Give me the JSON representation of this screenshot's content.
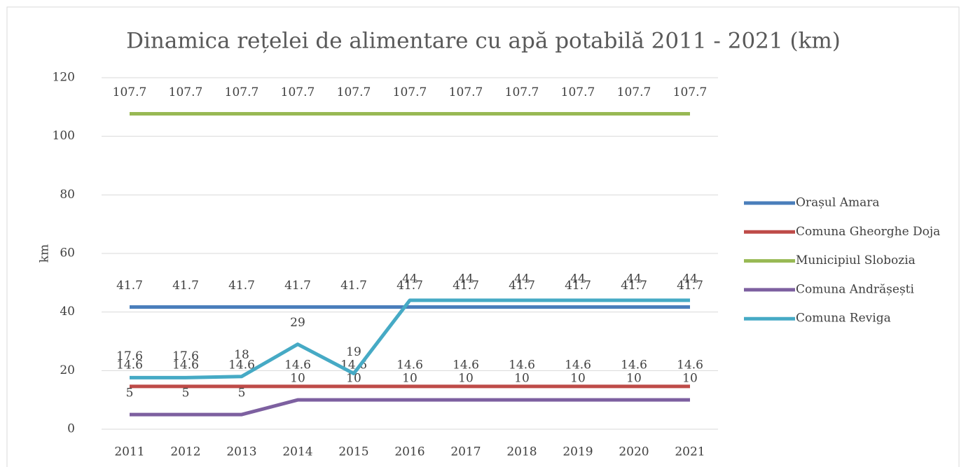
{
  "chart_data": {
    "type": "line",
    "title": "Dinamica rețelei de alimentare cu apă potabilă 2011 - 2021 (km)",
    "y_label": "km",
    "categories": [
      "2011",
      "2012",
      "2013",
      "2014",
      "2015",
      "2016",
      "2017",
      "2018",
      "2019",
      "2020",
      "2021"
    ],
    "series": [
      {
        "name": "Orașul Amara",
        "color": "#4a7ebb",
        "values": [
          41.7,
          41.7,
          41.7,
          41.7,
          41.7,
          41.7,
          41.7,
          41.7,
          41.7,
          41.7,
          41.7
        ]
      },
      {
        "name": "Comuna Gheorghe Doja",
        "color": "#be4b48",
        "values": [
          14.6,
          14.6,
          14.6,
          14.6,
          14.6,
          14.6,
          14.6,
          14.6,
          14.6,
          14.6,
          14.6
        ]
      },
      {
        "name": "Municipiul Slobozia",
        "color": "#98b954",
        "values": [
          107.7,
          107.7,
          107.7,
          107.7,
          107.7,
          107.7,
          107.7,
          107.7,
          107.7,
          107.7,
          107.7
        ]
      },
      {
        "name": "Comuna Andrășești",
        "color": "#7d60a0",
        "values": [
          5,
          5,
          5,
          10,
          10,
          10,
          10,
          10,
          10,
          10,
          10
        ]
      },
      {
        "name": "Comuna Reviga",
        "color": "#46aac5",
        "values": [
          17.6,
          17.6,
          18,
          29,
          19,
          44,
          44,
          44,
          44,
          44,
          44
        ]
      }
    ],
    "ylim": [
      0,
      120
    ],
    "yticks": [
      0,
      20,
      40,
      60,
      80,
      100,
      120
    ],
    "grid": true,
    "legend": "right",
    "data_labels": true
  }
}
